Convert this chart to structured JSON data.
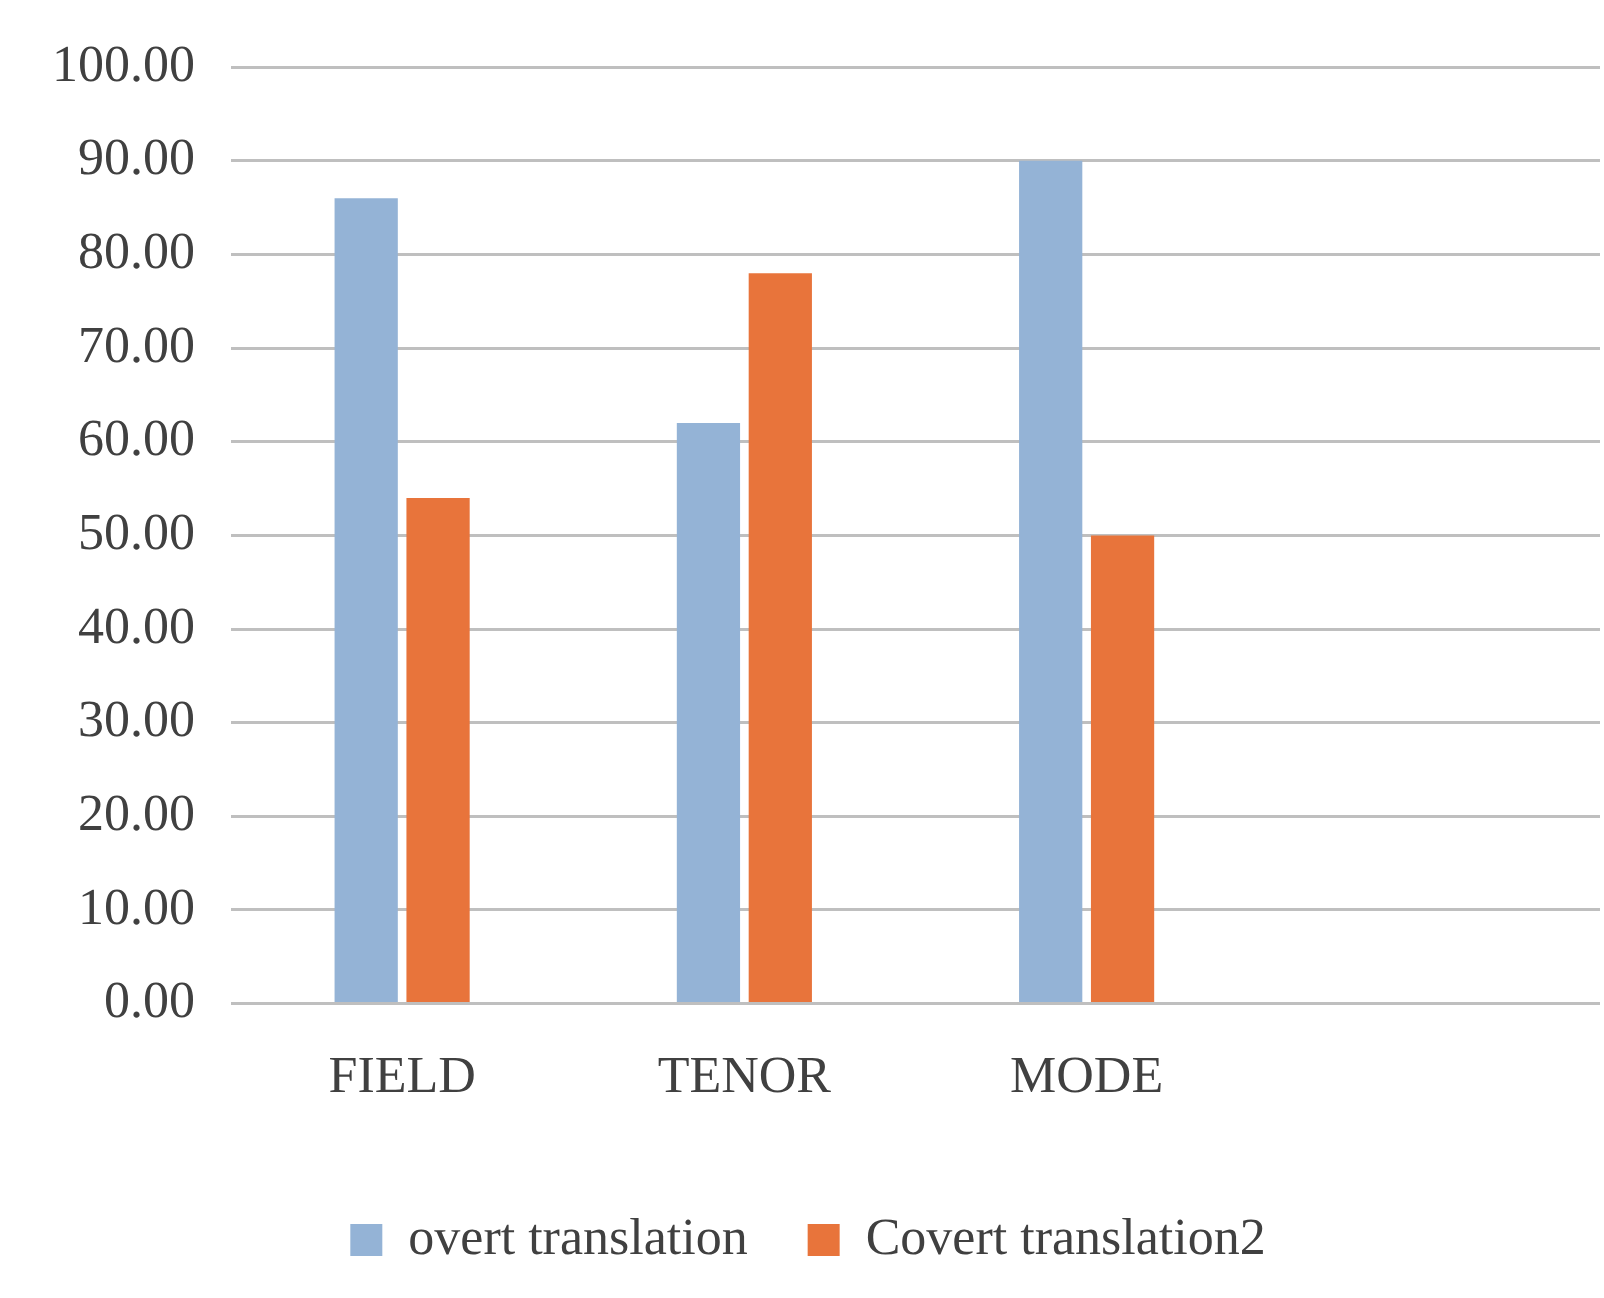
{
  "chart_data": {
    "type": "bar",
    "categories": [
      "FIELD",
      "TENOR",
      "MODE",
      null
    ],
    "series": [
      {
        "name": "overt translation",
        "color": "#94b3d6",
        "values": [
          86,
          62,
          90,
          null
        ]
      },
      {
        "name": "Covert translation2",
        "color": "#e8743b",
        "values": [
          54,
          78,
          50,
          null
        ]
      }
    ],
    "ylim": [
      0,
      100
    ],
    "yticks": [
      {
        "value": 0,
        "label": "0.00"
      },
      {
        "value": 10,
        "label": "10.00"
      },
      {
        "value": 20,
        "label": "20.00"
      },
      {
        "value": 30,
        "label": "30.00"
      },
      {
        "value": 40,
        "label": "40.00"
      },
      {
        "value": 50,
        "label": "50.00"
      },
      {
        "value": 60,
        "label": "60.00"
      },
      {
        "value": 70,
        "label": "70.00"
      },
      {
        "value": 80,
        "label": "80.00"
      },
      {
        "value": 90,
        "label": "90.00"
      },
      {
        "value": 100,
        "label": "100.00"
      }
    ],
    "grid": "y",
    "legend": "bottom"
  }
}
